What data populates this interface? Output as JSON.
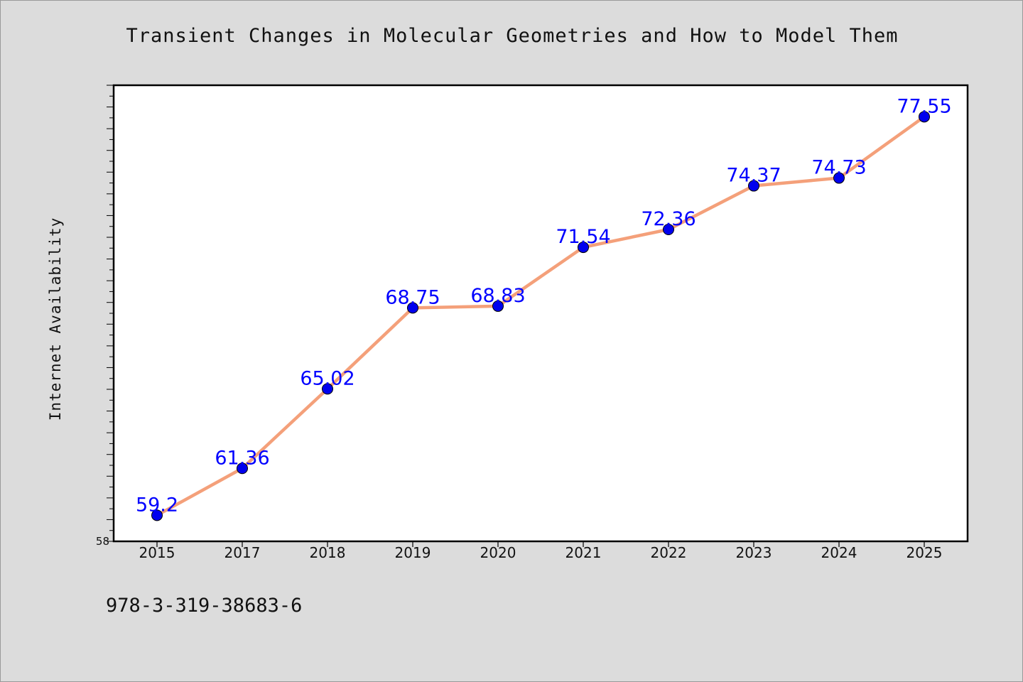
{
  "chart_data": {
    "type": "line",
    "title": "Transient Changes in Molecular Geometries and How to Model Them",
    "ylabel": "Internet Availability",
    "xlabel": "",
    "categories": [
      "2015",
      "2017",
      "2018",
      "2019",
      "2020",
      "2021",
      "2022",
      "2023",
      "2024",
      "2025"
    ],
    "series": [
      {
        "values": [
          59.2,
          61.36,
          65.02,
          68.75,
          68.83,
          71.54,
          72.36,
          74.37,
          74.73,
          77.55
        ]
      }
    ],
    "y_tick_labels": [
      "58"
    ],
    "ylim": [
      58,
      79
    ],
    "grid": false,
    "data_labels": true
  },
  "footnote": "978-3-319-38683-6",
  "colors": {
    "line": "#f4a07a",
    "marker": "#0000ee",
    "label": "#0000ff",
    "background": "#dcdcdc",
    "plot_background": "#ffffff"
  }
}
